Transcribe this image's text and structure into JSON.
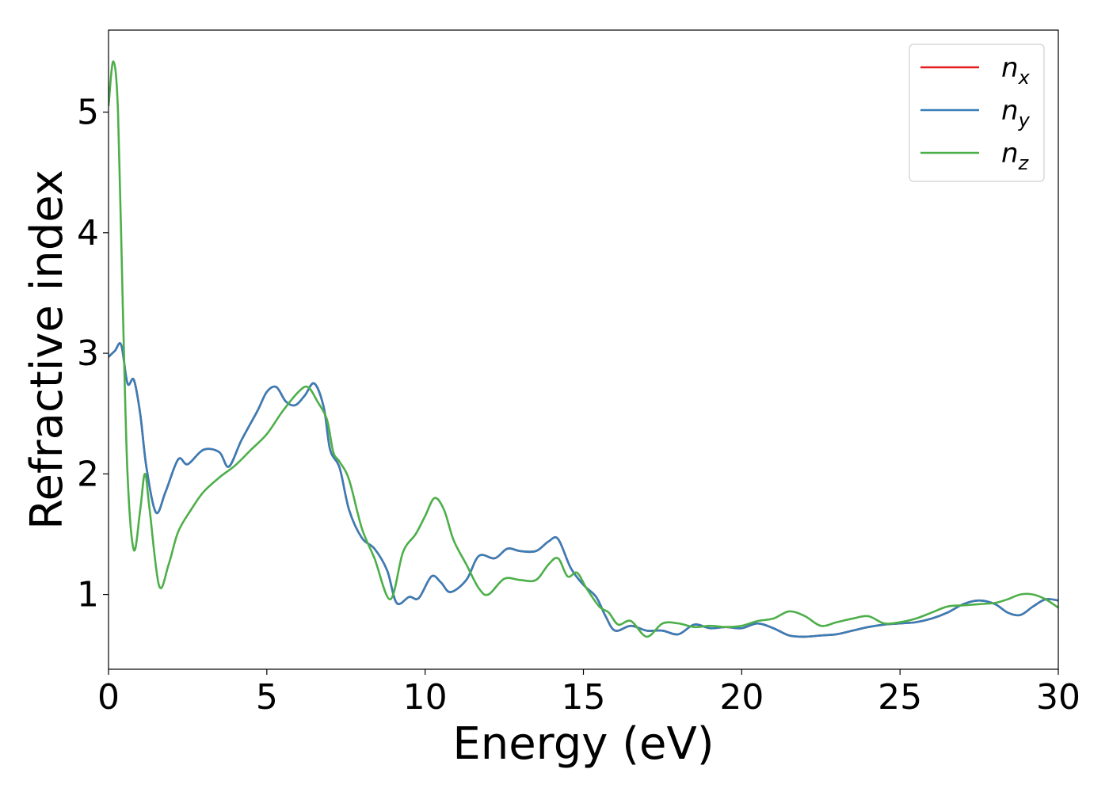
{
  "chart_data": {
    "type": "line",
    "xlabel": "Energy (eV)",
    "ylabel": "Refractive index",
    "xlim": [
      0,
      30
    ],
    "ylim": [
      0.38,
      5.68
    ],
    "xticks": [
      "0",
      "5",
      "10",
      "15",
      "20",
      "25",
      "30"
    ],
    "yticks": [
      "1",
      "2",
      "3",
      "4",
      "5"
    ],
    "grid": false,
    "legend_position": "top-right",
    "series": [
      {
        "name": "n_x",
        "legend_base": "n",
        "legend_sub": "x",
        "color": "#e41a1c",
        "x": [
          0,
          0.2,
          0.4,
          0.6,
          0.8,
          1.0,
          1.2,
          1.5,
          1.8,
          2.2,
          2.5,
          3.0,
          3.5,
          3.8,
          4.2,
          4.7,
          5.0,
          5.3,
          5.6,
          5.9,
          6.2,
          6.5,
          6.8,
          7.0,
          7.3,
          7.6,
          8.0,
          8.4,
          8.8,
          9.1,
          9.5,
          9.8,
          10.2,
          10.5,
          10.8,
          11.3,
          11.7,
          12.2,
          12.6,
          13.0,
          13.5,
          13.9,
          14.2,
          14.6,
          15.0,
          15.4,
          15.7,
          16.0,
          16.5,
          17.0,
          17.5,
          18.0,
          18.5,
          19.0,
          19.5,
          20.0,
          20.5,
          21.0,
          21.5,
          22.0,
          22.5,
          23.0,
          23.5,
          24.0,
          24.5,
          25.0,
          25.5,
          26.0,
          26.5,
          27.0,
          27.5,
          28.0,
          28.4,
          28.8,
          29.2,
          29.6,
          30.0
        ],
        "y": [
          2.97,
          3.02,
          3.07,
          2.75,
          2.78,
          2.5,
          2.05,
          1.68,
          1.85,
          2.12,
          2.08,
          2.2,
          2.18,
          2.06,
          2.28,
          2.52,
          2.68,
          2.72,
          2.6,
          2.57,
          2.65,
          2.75,
          2.55,
          2.2,
          2.05,
          1.7,
          1.47,
          1.38,
          1.2,
          0.93,
          0.98,
          0.97,
          1.15,
          1.1,
          1.02,
          1.12,
          1.32,
          1.3,
          1.38,
          1.36,
          1.36,
          1.44,
          1.46,
          1.22,
          1.08,
          0.98,
          0.82,
          0.7,
          0.74,
          0.7,
          0.7,
          0.67,
          0.75,
          0.72,
          0.73,
          0.72,
          0.76,
          0.72,
          0.66,
          0.65,
          0.66,
          0.67,
          0.7,
          0.73,
          0.75,
          0.76,
          0.77,
          0.8,
          0.85,
          0.92,
          0.95,
          0.92,
          0.85,
          0.83,
          0.9,
          0.96,
          0.95
        ]
      },
      {
        "name": "n_y",
        "legend_base": "n",
        "legend_sub": "y",
        "color": "#377eb8",
        "x": [
          0,
          0.2,
          0.4,
          0.6,
          0.8,
          1.0,
          1.2,
          1.5,
          1.8,
          2.2,
          2.5,
          3.0,
          3.5,
          3.8,
          4.2,
          4.7,
          5.0,
          5.3,
          5.6,
          5.9,
          6.2,
          6.5,
          6.8,
          7.0,
          7.3,
          7.6,
          8.0,
          8.4,
          8.8,
          9.1,
          9.5,
          9.8,
          10.2,
          10.5,
          10.8,
          11.3,
          11.7,
          12.2,
          12.6,
          13.0,
          13.5,
          13.9,
          14.2,
          14.6,
          15.0,
          15.4,
          15.7,
          16.0,
          16.5,
          17.0,
          17.5,
          18.0,
          18.5,
          19.0,
          19.5,
          20.0,
          20.5,
          21.0,
          21.5,
          22.0,
          22.5,
          23.0,
          23.5,
          24.0,
          24.5,
          25.0,
          25.5,
          26.0,
          26.5,
          27.0,
          27.5,
          28.0,
          28.4,
          28.8,
          29.2,
          29.6,
          30.0
        ],
        "y": [
          2.97,
          3.02,
          3.07,
          2.75,
          2.78,
          2.5,
          2.05,
          1.68,
          1.85,
          2.12,
          2.08,
          2.2,
          2.18,
          2.06,
          2.28,
          2.52,
          2.68,
          2.72,
          2.6,
          2.57,
          2.65,
          2.75,
          2.55,
          2.2,
          2.05,
          1.7,
          1.47,
          1.38,
          1.2,
          0.93,
          0.98,
          0.97,
          1.15,
          1.1,
          1.02,
          1.12,
          1.32,
          1.3,
          1.38,
          1.36,
          1.36,
          1.44,
          1.46,
          1.22,
          1.08,
          0.98,
          0.82,
          0.7,
          0.74,
          0.7,
          0.7,
          0.67,
          0.75,
          0.72,
          0.73,
          0.72,
          0.76,
          0.72,
          0.66,
          0.65,
          0.66,
          0.67,
          0.7,
          0.73,
          0.75,
          0.76,
          0.77,
          0.8,
          0.85,
          0.92,
          0.95,
          0.92,
          0.85,
          0.83,
          0.9,
          0.96,
          0.95
        ]
      },
      {
        "name": "n_z",
        "legend_base": "n",
        "legend_sub": "z",
        "color": "#4daf4a",
        "x": [
          0,
          0.15,
          0.3,
          0.45,
          0.6,
          0.8,
          1.0,
          1.15,
          1.3,
          1.6,
          1.9,
          2.2,
          2.6,
          3.0,
          3.5,
          4.0,
          4.5,
          5.0,
          5.5,
          6.0,
          6.3,
          6.6,
          6.9,
          7.1,
          7.3,
          7.6,
          8.0,
          8.4,
          8.9,
          9.3,
          9.7,
          10.0,
          10.3,
          10.6,
          10.9,
          11.3,
          11.7,
          12.0,
          12.5,
          13.0,
          13.5,
          13.9,
          14.2,
          14.5,
          14.8,
          15.1,
          15.5,
          15.8,
          16.1,
          16.5,
          17.0,
          17.5,
          18.0,
          18.5,
          19.0,
          19.5,
          20.0,
          20.5,
          21.0,
          21.5,
          22.0,
          22.5,
          23.0,
          23.5,
          24.0,
          24.5,
          25.0,
          25.5,
          26.0,
          26.5,
          27.0,
          27.5,
          28.0,
          28.4,
          28.8,
          29.2,
          29.6,
          30.0
        ],
        "y": [
          5.05,
          5.42,
          5.0,
          3.4,
          2.0,
          1.37,
          1.7,
          2.0,
          1.7,
          1.07,
          1.25,
          1.52,
          1.7,
          1.85,
          1.97,
          2.07,
          2.2,
          2.33,
          2.52,
          2.68,
          2.72,
          2.6,
          2.45,
          2.18,
          2.1,
          1.95,
          1.55,
          1.3,
          0.96,
          1.35,
          1.5,
          1.65,
          1.8,
          1.7,
          1.45,
          1.25,
          1.05,
          1.0,
          1.13,
          1.12,
          1.12,
          1.25,
          1.3,
          1.15,
          1.18,
          1.05,
          0.9,
          0.85,
          0.75,
          0.78,
          0.65,
          0.76,
          0.76,
          0.73,
          0.74,
          0.73,
          0.74,
          0.78,
          0.8,
          0.86,
          0.82,
          0.74,
          0.77,
          0.8,
          0.82,
          0.76,
          0.77,
          0.8,
          0.85,
          0.9,
          0.91,
          0.92,
          0.93,
          0.96,
          1.0,
          1.0,
          0.96,
          0.89
        ]
      }
    ]
  }
}
